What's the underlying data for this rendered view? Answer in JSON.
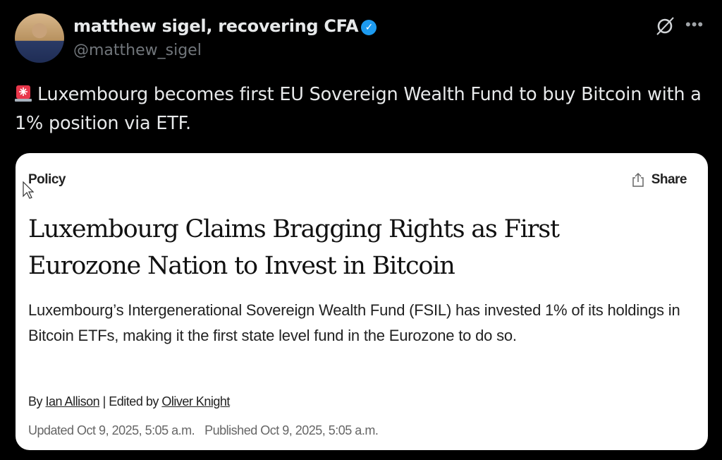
{
  "author": {
    "display_name": "matthew sigel, recovering CFA",
    "handle": "@matthew_sigel",
    "verified": true,
    "verified_color": "#1d9bf0"
  },
  "actions": {
    "grok_icon": "grok-icon",
    "more_icon": "more-icon"
  },
  "tweet": {
    "emoji": "rotating-light",
    "text": "Luxembourg becomes first EU Sovereign Wealth Fund to buy Bitcoin with a 1% position via ETF."
  },
  "article": {
    "section": "Policy",
    "share_label": "Share",
    "headline": "Luxembourg Claims Bragging Rights as First Eurozone Nation to Invest in Bitcoin",
    "dek": "Luxembourg’s Intergenerational Sovereign Wealth Fund (FSIL) has invested 1% of its holdings in Bitcoin ETFs, making it the first state level fund in the Eurozone to do so.",
    "byline": {
      "by": "By",
      "author": "Ian Allison",
      "separator": "| Edited by",
      "editor": "Oliver Knight"
    },
    "updated": "Updated Oct 9, 2025, 5:05 a.m.",
    "published": "Published Oct 9, 2025, 5:05 a.m."
  }
}
